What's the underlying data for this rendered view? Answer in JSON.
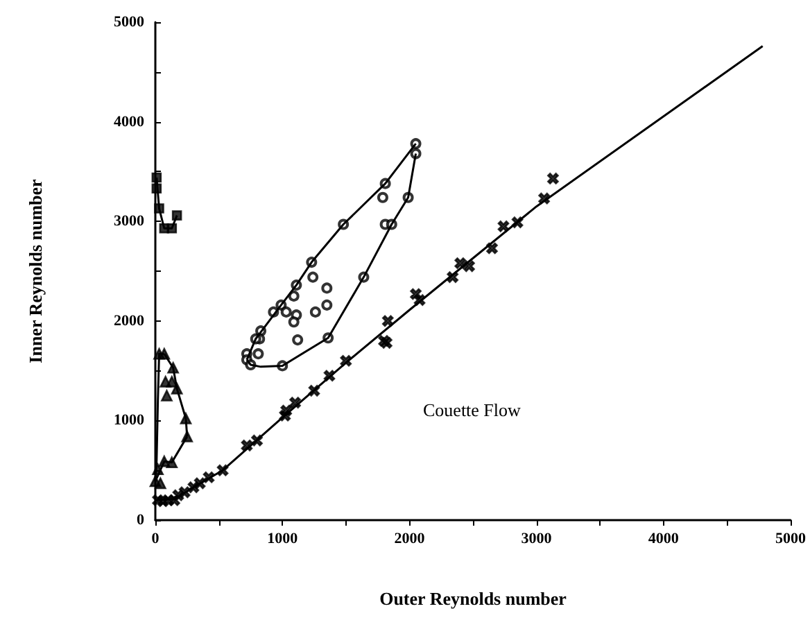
{
  "chart_data": {
    "type": "scatter",
    "xlabel": "Outer Reynolds number",
    "ylabel": "Inner Reynolds number",
    "xlim": [
      0,
      5000
    ],
    "ylim": [
      0,
      5000
    ],
    "xticks": [
      0,
      {
        "value": 500,
        "label": null
      },
      1000,
      {
        "value": 1500,
        "label": null
      },
      2000,
      {
        "value": 2500,
        "label": null
      },
      3000,
      {
        "value": 3500,
        "label": null
      },
      4000,
      {
        "value": 4500,
        "label": null
      },
      5000
    ],
    "yticks": [
      0,
      {
        "value": 500,
        "label": null
      },
      1000,
      {
        "value": 1500,
        "label": null
      },
      2000,
      {
        "value": 2500,
        "label": null
      },
      3000,
      {
        "value": 3500,
        "label": null
      },
      4000,
      {
        "value": 4500,
        "label": null
      },
      5000
    ],
    "grid": false,
    "annotations": [
      "Couette Flow"
    ],
    "series": [
      {
        "type": "line",
        "marker": "none",
        "color": "#000000",
        "x": [
          0,
          150,
          300,
          530,
          1000,
          1500,
          2000,
          3000,
          4780
        ],
        "values": [
          200,
          210,
          330,
          500,
          1030,
          1580,
          2110,
          3150,
          4760
        ]
      },
      {
        "type": "line",
        "marker": "none",
        "color": "#000000",
        "x": [
          720,
          790,
          990,
          1110,
          1230,
          1480,
          1810,
          2050
        ],
        "values": [
          1610,
          1820,
          2160,
          2360,
          2590,
          2970,
          3380,
          3780
        ]
      },
      {
        "type": "line",
        "marker": "none",
        "color": "#000000",
        "x": [
          720,
          750,
          830,
          1000,
          1360,
          1640,
          1860,
          1990,
          2050
        ],
        "values": [
          1610,
          1560,
          1540,
          1550,
          1830,
          2440,
          2970,
          3240,
          3680
        ]
      },
      {
        "type": "line",
        "marker": "none",
        "color": "#000000",
        "x": [
          0,
          70,
          130,
          250
        ],
        "values": [
          390,
          590,
          580,
          840
        ]
      },
      {
        "type": "line",
        "marker": "none",
        "color": "#000000",
        "x": [
          70,
          140,
          170,
          240,
          250
        ],
        "values": [
          1670,
          1530,
          1320,
          1020,
          840
        ]
      },
      {
        "type": "line",
        "marker": "none",
        "color": "#000000",
        "x": [
          0,
          10,
          20,
          30,
          70
        ],
        "values": [
          390,
          600,
          1200,
          1670,
          1670
        ]
      },
      {
        "type": "line",
        "marker": "none",
        "color": "#000000",
        "x": [
          10,
          30,
          70,
          130,
          170
        ],
        "values": [
          3440,
          3130,
          2930,
          2930,
          3060
        ]
      },
      {
        "marker": "cross",
        "color": "#000000",
        "x": [
          20,
          60,
          100,
          150,
          180,
          230,
          300,
          350,
          420,
          530,
          720,
          800,
          1020,
          1030,
          1100,
          1250,
          1370,
          1500,
          1800,
          1820,
          1830,
          2050,
          2080,
          2340,
          2400,
          2470,
          2650,
          2740,
          2850,
          3060,
          3130
        ],
        "values": [
          200,
          190,
          200,
          200,
          250,
          280,
          330,
          370,
          430,
          500,
          750,
          800,
          1050,
          1100,
          1180,
          1300,
          1450,
          1600,
          1800,
          1780,
          2000,
          2270,
          2210,
          2440,
          2580,
          2550,
          2730,
          2950,
          2990,
          3230,
          3430
        ]
      },
      {
        "marker": "circle",
        "color": "#000000",
        "x": [
          2050,
          2050,
          1810,
          1790,
          1990,
          1810,
          1860,
          1480,
          1230,
          1640,
          1240,
          1350,
          1110,
          1090,
          1350,
          990,
          930,
          1030,
          1260,
          1110,
          1090,
          830,
          820,
          790,
          1120,
          1360,
          720,
          810,
          720,
          750,
          1000
        ],
        "values": [
          3780,
          3680,
          3380,
          3240,
          3240,
          2970,
          2970,
          2970,
          2590,
          2440,
          2440,
          2330,
          2360,
          2250,
          2160,
          2160,
          2090,
          2090,
          2090,
          2060,
          1990,
          1900,
          1820,
          1820,
          1810,
          1830,
          1670,
          1670,
          1610,
          1560,
          1550
        ]
      },
      {
        "marker": "triangle",
        "color": "#000000",
        "x": [
          30,
          70,
          140,
          80,
          130,
          90,
          170,
          240,
          250,
          130,
          70,
          20,
          0,
          40
        ],
        "values": [
          1670,
          1670,
          1530,
          1390,
          1390,
          1250,
          1320,
          1020,
          840,
          580,
          590,
          510,
          390,
          370
        ]
      },
      {
        "marker": "square",
        "color": "#000000",
        "x": [
          10,
          10,
          30,
          70,
          130,
          170
        ],
        "values": [
          3440,
          3330,
          3130,
          2930,
          2930,
          3060
        ]
      }
    ]
  }
}
